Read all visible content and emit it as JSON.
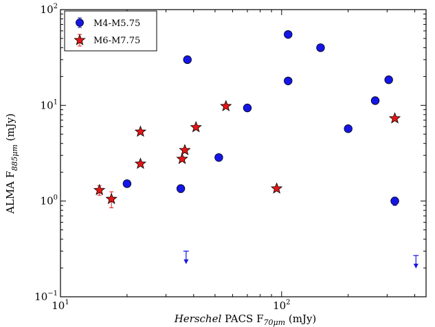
{
  "chart_data": {
    "type": "scatter",
    "xscale": "log",
    "yscale": "log",
    "xlim": [
      10,
      450
    ],
    "ylim": [
      0.1,
      100
    ],
    "xlabel": {
      "italic": "Herschel",
      "rest": " PACS F",
      "sub": "70μm",
      "unit": " (mJy)"
    },
    "ylabel": {
      "main": "ALMA F",
      "sub": "885μm",
      "unit": " (mJy)"
    },
    "x_ticks": [
      {
        "value": 10,
        "base": "10",
        "exp": "1"
      },
      {
        "value": 100,
        "base": "10",
        "exp": "2"
      }
    ],
    "y_ticks": [
      {
        "value": 0.1,
        "base": "10",
        "exp": "−1"
      },
      {
        "value": 1,
        "base": "10",
        "exp": "0"
      },
      {
        "value": 10,
        "base": "10",
        "exp": "1"
      },
      {
        "value": 100,
        "base": "10",
        "exp": "2"
      }
    ],
    "legend_position": "top-left",
    "series": [
      {
        "name": "M4-M5.75",
        "marker": "circle",
        "color": "#1515e6",
        "points": [
          {
            "x": 20,
            "y": 1.52,
            "err": 0.12
          },
          {
            "x": 35,
            "y": 1.35,
            "err": 0.12
          },
          {
            "x": 37.5,
            "y": 30
          },
          {
            "x": 52,
            "y": 2.85
          },
          {
            "x": 70,
            "y": 9.4
          },
          {
            "x": 107,
            "y": 55
          },
          {
            "x": 107,
            "y": 18
          },
          {
            "x": 150,
            "y": 40
          },
          {
            "x": 200,
            "y": 5.7
          },
          {
            "x": 265,
            "y": 11.2
          },
          {
            "x": 305,
            "y": 18.5
          },
          {
            "x": 325,
            "y": 1.0,
            "err": 0.1
          }
        ],
        "upper_limits": [
          {
            "x": 37,
            "y": 0.3
          },
          {
            "x": 405,
            "y": 0.27
          }
        ]
      },
      {
        "name": "M6-M7.75",
        "marker": "star",
        "color": "#e61515",
        "points": [
          {
            "x": 15,
            "y": 1.3,
            "err": 0.15
          },
          {
            "x": 17,
            "y": 1.05,
            "err": 0.2
          },
          {
            "x": 23,
            "y": 5.3
          },
          {
            "x": 23,
            "y": 2.45
          },
          {
            "x": 35.5,
            "y": 2.75
          },
          {
            "x": 36.5,
            "y": 3.4
          },
          {
            "x": 41,
            "y": 5.9
          },
          {
            "x": 56,
            "y": 9.8
          },
          {
            "x": 95,
            "y": 1.35
          },
          {
            "x": 325,
            "y": 7.3
          }
        ]
      }
    ]
  }
}
